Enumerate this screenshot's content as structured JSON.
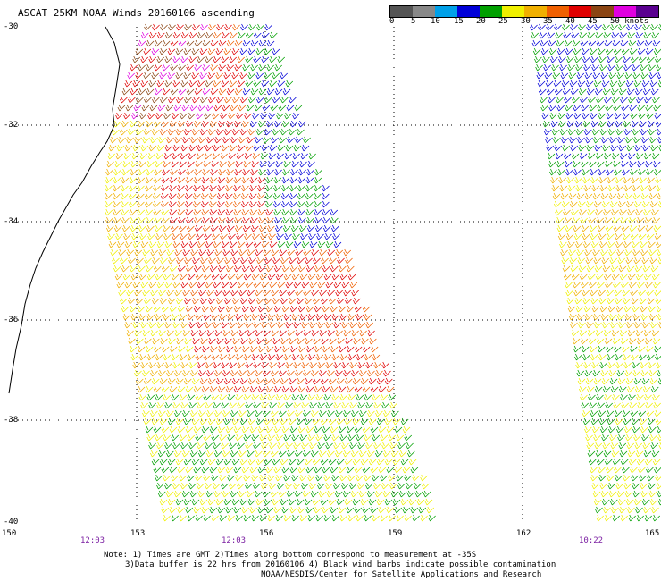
{
  "title": "ASCAT 25KM NOAA Winds 20160106 ascending",
  "legend": {
    "ticks": [
      "0",
      "5",
      "10",
      "15",
      "20",
      "25",
      "30",
      "35",
      "40",
      "45",
      "50 knots"
    ],
    "colors": [
      "#555555",
      "#888888",
      "#00a0e8",
      "#0000d8",
      "#00a000",
      "#f0f000",
      "#f0b000",
      "#f06000",
      "#e00000",
      "#8b4513",
      "#e000e0",
      "#5a0090"
    ]
  },
  "latitude_labels": [
    "-30",
    "-32",
    "-34",
    "-36",
    "-38",
    "-40"
  ],
  "longitude_labels": [
    "150",
    "153",
    "156",
    "159",
    "162",
    "165"
  ],
  "time_labels": [
    "12:03",
    "12:03",
    "10:22"
  ],
  "notes": [
    "Note: 1) Times are GMT 2)Times along bottom correspond to measurement at -35S",
    "3)Data buffer is 22 hrs from 20160106 4) Black wind barbs indicate possible contamination",
    "NOAA/NESDIS/Center for Satellite Applications and Research"
  ]
}
